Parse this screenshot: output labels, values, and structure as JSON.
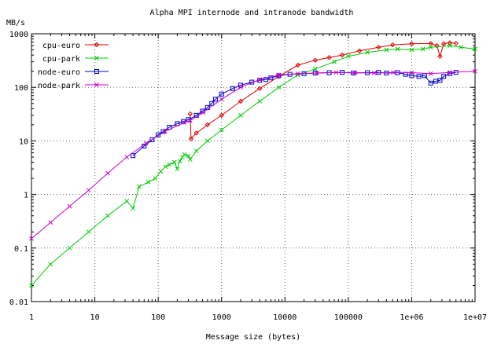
{
  "chart_data": {
    "type": "line",
    "title": "Alpha MPI internode and intranode bandwidth",
    "xlabel": "Message size (bytes)",
    "ylabel": "MB/s",
    "x_scale": "log",
    "y_scale": "log",
    "xlim": [
      1,
      10000000
    ],
    "ylim": [
      0.01,
      1000
    ],
    "grid": true,
    "legend_position": "top-left",
    "x_ticks": [
      {
        "value": 1,
        "label": "1"
      },
      {
        "value": 10,
        "label": "10"
      },
      {
        "value": 100,
        "label": "100"
      },
      {
        "value": 1000,
        "label": "1000"
      },
      {
        "value": 10000,
        "label": "10000"
      },
      {
        "value": 100000,
        "label": "100000"
      },
      {
        "value": 1000000,
        "label": "1e+06"
      },
      {
        "value": 10000000,
        "label": "1e+07"
      }
    ],
    "y_ticks": [
      {
        "value": 0.01,
        "label": "0.01"
      },
      {
        "value": 0.1,
        "label": "0.1"
      },
      {
        "value": 1,
        "label": "1"
      },
      {
        "value": 10,
        "label": "10"
      },
      {
        "value": 100,
        "label": "100"
      },
      {
        "value": 1000,
        "label": "1000"
      }
    ],
    "series": [
      {
        "name": "cpu-euro",
        "color": "#dd0000",
        "marker": "diamond",
        "points": [
          [
            320,
            32
          ],
          [
            330,
            11
          ],
          [
            400,
            14
          ],
          [
            600,
            20
          ],
          [
            1000,
            30
          ],
          [
            2000,
            55
          ],
          [
            4000,
            95
          ],
          [
            8000,
            160
          ],
          [
            16000,
            260
          ],
          [
            30000,
            320
          ],
          [
            50000,
            360
          ],
          [
            80000,
            400
          ],
          [
            150000,
            480
          ],
          [
            300000,
            560
          ],
          [
            500000,
            620
          ],
          [
            1000000,
            650
          ],
          [
            2000000,
            660
          ],
          [
            2500000,
            600
          ],
          [
            2800000,
            380
          ],
          [
            3200000,
            650
          ],
          [
            4000000,
            680
          ],
          [
            5000000,
            660
          ]
        ]
      },
      {
        "name": "cpu-park",
        "color": "#00cc00",
        "marker": "x",
        "points": [
          [
            1,
            0.02
          ],
          [
            2,
            0.05
          ],
          [
            4,
            0.1
          ],
          [
            8,
            0.2
          ],
          [
            16,
            0.4
          ],
          [
            32,
            0.75
          ],
          [
            40,
            0.55
          ],
          [
            50,
            1.4
          ],
          [
            70,
            1.7
          ],
          [
            90,
            2.0
          ],
          [
            110,
            2.7
          ],
          [
            130,
            3.3
          ],
          [
            150,
            3.6
          ],
          [
            180,
            4.0
          ],
          [
            200,
            3.0
          ],
          [
            220,
            4.2
          ],
          [
            240,
            5.0
          ],
          [
            260,
            5.6
          ],
          [
            300,
            5.2
          ],
          [
            320,
            4.5
          ],
          [
            400,
            6.5
          ],
          [
            600,
            10
          ],
          [
            1000,
            16
          ],
          [
            2000,
            30
          ],
          [
            4000,
            55
          ],
          [
            8000,
            100
          ],
          [
            16000,
            170
          ],
          [
            30000,
            220
          ],
          [
            60000,
            300
          ],
          [
            100000,
            380
          ],
          [
            200000,
            450
          ],
          [
            400000,
            500
          ],
          [
            600000,
            520
          ],
          [
            1000000,
            500
          ],
          [
            1500000,
            520
          ],
          [
            2000000,
            560
          ],
          [
            4000000,
            600
          ],
          [
            6000000,
            560
          ],
          [
            10000000,
            520
          ]
        ]
      },
      {
        "name": "node-euro",
        "color": "#0000cc",
        "marker": "square",
        "points": [
          [
            40,
            5.3
          ],
          [
            60,
            8
          ],
          [
            80,
            10.5
          ],
          [
            100,
            13
          ],
          [
            120,
            15
          ],
          [
            150,
            18
          ],
          [
            200,
            21
          ],
          [
            250,
            23
          ],
          [
            300,
            25
          ],
          [
            400,
            30
          ],
          [
            500,
            36
          ],
          [
            600,
            42
          ],
          [
            700,
            50
          ],
          [
            800,
            60
          ],
          [
            1000,
            75
          ],
          [
            1500,
            95
          ],
          [
            2000,
            110
          ],
          [
            3000,
            125
          ],
          [
            4000,
            135
          ],
          [
            5000,
            140
          ],
          [
            6000,
            150
          ],
          [
            8000,
            165
          ],
          [
            12000,
            175
          ],
          [
            20000,
            180
          ],
          [
            30000,
            185
          ],
          [
            50000,
            188
          ],
          [
            80000,
            190
          ],
          [
            120000,
            185
          ],
          [
            200000,
            188
          ],
          [
            300000,
            190
          ],
          [
            400000,
            185
          ],
          [
            600000,
            188
          ],
          [
            800000,
            175
          ],
          [
            1000000,
            165
          ],
          [
            1300000,
            160
          ],
          [
            1600000,
            165
          ],
          [
            2000000,
            120
          ],
          [
            2400000,
            130
          ],
          [
            2800000,
            135
          ],
          [
            3200000,
            160
          ],
          [
            4000000,
            180
          ],
          [
            5000000,
            190
          ]
        ]
      },
      {
        "name": "node-park",
        "color": "#cc00cc",
        "marker": "x",
        "points": [
          [
            1,
            0.15
          ],
          [
            2,
            0.3
          ],
          [
            4,
            0.6
          ],
          [
            8,
            1.2
          ],
          [
            16,
            2.5
          ],
          [
            32,
            5
          ],
          [
            64,
            9
          ],
          [
            128,
            15
          ],
          [
            256,
            22
          ],
          [
            320,
            24
          ],
          [
            512,
            34
          ],
          [
            1000,
            60
          ],
          [
            2000,
            100
          ],
          [
            4000,
            140
          ],
          [
            8000,
            170
          ],
          [
            16000,
            180
          ],
          [
            32000,
            185
          ],
          [
            64000,
            190
          ],
          [
            128000,
            188
          ],
          [
            256000,
            185
          ],
          [
            512000,
            190
          ],
          [
            1000000,
            188
          ],
          [
            2000000,
            180
          ],
          [
            4000000,
            190
          ],
          [
            10000000,
            200
          ]
        ]
      }
    ]
  }
}
